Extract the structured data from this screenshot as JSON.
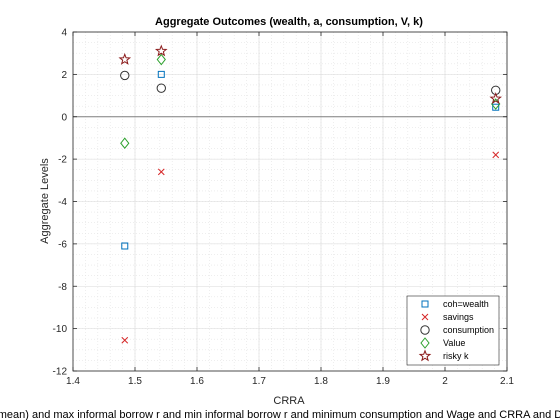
{
  "chart_data": {
    "type": "scatter",
    "title": "Aggregate Outcomes (wealth, a, consumption, V, k)",
    "xlabel": "CRRA",
    "ylabel": "Aggregate Levels",
    "caption": "mean) and max informal borrow r and min informal borrow r and minimum consumption and Wage and CRRA and D",
    "xlim": [
      1.4,
      2.1
    ],
    "ylim": [
      -12,
      4
    ],
    "xticks": [
      1.4,
      1.5,
      1.6,
      1.7,
      1.8,
      1.9,
      2,
      2.1
    ],
    "xtick_labels": [
      "1.4",
      "1.5",
      "1.6",
      "1.7",
      "1.8",
      "1.9",
      "2",
      "2.1"
    ],
    "yticks": [
      -12,
      -10,
      -8,
      -6,
      -4,
      -2,
      0,
      2,
      4
    ],
    "ytick_labels": [
      "-12",
      "-10",
      "-8",
      "-6",
      "-4",
      "-2",
      "0",
      "2",
      "4"
    ],
    "grid": "minor-dotted",
    "zero_line": true,
    "legend_position": "bottom-right",
    "x": [
      1.4835,
      1.5424,
      2.0818
    ],
    "series": [
      {
        "name": "coh=wealth",
        "marker": "square",
        "color": "#0072BD",
        "values": [
          -6.1,
          2.0,
          0.45
        ]
      },
      {
        "name": "savings",
        "marker": "x",
        "color": "#D62728",
        "values": [
          -10.55,
          -2.6,
          -1.8
        ]
      },
      {
        "name": "consumption",
        "marker": "circle",
        "color": "#333333",
        "values": [
          1.95,
          1.35,
          1.25
        ]
      },
      {
        "name": "Value",
        "marker": "diamond",
        "color": "#2CA02C",
        "values": [
          -1.25,
          2.7,
          0.6
        ]
      },
      {
        "name": "risky k",
        "marker": "star",
        "color": "#8B1A1A",
        "values": [
          2.7,
          3.1,
          0.85
        ]
      }
    ]
  }
}
